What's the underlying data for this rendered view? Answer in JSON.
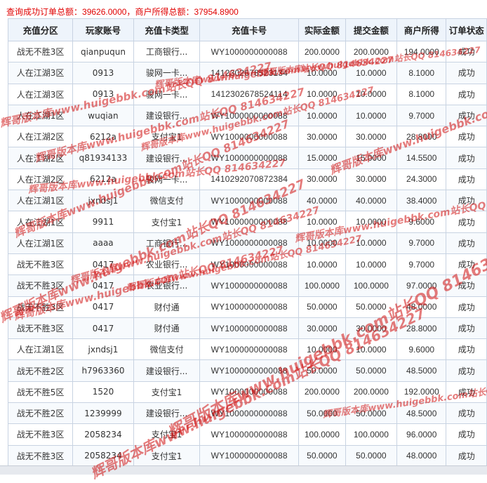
{
  "summary": {
    "label_total": "查询成功订单总额：",
    "total": "39626.0000",
    "separator": "，",
    "label_merchant": "商户所得总额：",
    "merchant_total": "37954.8900"
  },
  "table": {
    "headers": [
      "充值分区",
      "玩家账号",
      "充值卡类型",
      "充值卡号",
      "实际金额",
      "提交金额",
      "商户所得",
      "订单状态"
    ],
    "rows": [
      [
        "战无不胜3区",
        "qianpuqun",
        "工商银行...",
        "WY1000000000088",
        "200.0000",
        "200.0000",
        "194.0000",
        "成功"
      ],
      [
        "人在江湖3区",
        "0913",
        "骏网一卡...",
        "1412302678523134",
        "10.0000",
        "10.0000",
        "8.1000",
        "成功"
      ],
      [
        "人在江湖3区",
        "0913",
        "骏网一卡...",
        "1412302678524114",
        "10.0000",
        "10.0000",
        "8.1000",
        "成功"
      ],
      [
        "人在江湖1区",
        "wuqian",
        "建设银行...",
        "WY1000000000088",
        "10.0000",
        "10.0000",
        "9.7000",
        "成功"
      ],
      [
        "人在江湖2区",
        "6212a",
        "支付宝1",
        "WY1000000000088",
        "30.0000",
        "30.0000",
        "28.8000",
        "成功"
      ],
      [
        "人在江湖2区",
        "q81934133",
        "建设银行...",
        "WY1000000000088",
        "15.0000",
        "15.0000",
        "14.5500",
        "成功"
      ],
      [
        "人在江湖2区",
        "6212a",
        "骏网一卡...",
        "1410292070872384",
        "30.0000",
        "30.0000",
        "24.3000",
        "成功"
      ],
      [
        "人在江湖1区",
        "jxndsj1",
        "微信支付",
        "WY1000000000088",
        "40.0000",
        "40.0000",
        "38.4000",
        "成功"
      ],
      [
        "人在江湖1区",
        "9911",
        "支付宝1",
        "WY1000000000088",
        "10.0000",
        "10.0000",
        "9.6000",
        "成功"
      ],
      [
        "人在江湖1区",
        "aaaa",
        "工商银行...",
        "WY1000000000088",
        "10.0000",
        "10.0000",
        "9.7000",
        "成功"
      ],
      [
        "战无不胜3区",
        "0417",
        "农业银行...",
        "WY1000000000088",
        "10.0000",
        "10.0000",
        "9.7000",
        "成功"
      ],
      [
        "战无不胜3区",
        "0417",
        "农业银行...",
        "WY1000000000088",
        "100.0000",
        "100.0000",
        "97.0000",
        "成功"
      ],
      [
        "战无不胜3区",
        "0417",
        "财付通",
        "WY1000000000088",
        "50.0000",
        "50.0000",
        "48.0000",
        "成功"
      ],
      [
        "战无不胜3区",
        "0417",
        "财付通",
        "WY1000000000088",
        "30.0000",
        "30.0000",
        "28.8000",
        "成功"
      ],
      [
        "人在江湖1区",
        "jxndsj1",
        "微信支付",
        "WY1000000000088",
        "10.0000",
        "10.0000",
        "9.6000",
        "成功"
      ],
      [
        "战无不胜2区",
        "h7963360",
        "建设银行...",
        "WY1000000000088",
        "50.0000",
        "50.0000",
        "48.5000",
        "成功"
      ],
      [
        "战无不胜5区",
        "1520",
        "支付宝1",
        "WY1000000000088",
        "200.0000",
        "200.0000",
        "192.0000",
        "成功"
      ],
      [
        "战无不胜2区",
        "1239999",
        "建设银行...",
        "WY1000000000088",
        "50.0000",
        "50.0000",
        "48.5000",
        "成功"
      ],
      [
        "战无不胜3区",
        "2058234",
        "支付宝1",
        "WY1000000000088",
        "100.0000",
        "100.0000",
        "96.0000",
        "成功"
      ],
      [
        "战无不胜3区",
        "2058234",
        "支付宝1",
        "WY1000000000088",
        "50.0000",
        "50.0000",
        "48.0000",
        "成功"
      ]
    ]
  },
  "watermarks": [
    "辉哥版本库www.huigebbk.com站长QQ 814634227",
    "辉哥版本库www.huigebbk.com站长QQ 814634227",
    "辉哥版本库www.huigebbk.com站长QQ 814634227",
    "辉哥版本库www.huigebbk.com站长QQ 814634227",
    "辉哥版本库www.huigebbk.com站长QQ 814634227",
    "辉哥版本库www.huigebbk.com站长QQ 814634227",
    "辉哥版本库www.huigebbk.com站长QQ 814634227",
    "辉哥版本库www.huigebbk.com站长QQ 814634227",
    "辉哥版本库www.huigebbk.com站长QQ 814634227",
    "辉哥版本库www.huigebbk.com站长QQ 814634227",
    "辉哥版本库www.huigebbk.com站长QQ 814634227",
    "辉哥版本库www.huigebbk.com站长QQ 814634227",
    "辉哥版本库www.huigebbk.com站长QQ 814634227",
    "辉哥版本库www.huigebbk.com站长QQ 814634227",
    "辉哥版本库www.huigebbk.com站长QQ 814634227",
    "辉哥版本库www.huigebbk.com站长QQ 814634227"
  ],
  "colors": {
    "summary_text": "#e00000",
    "header_bg": "#eef4fb",
    "border": "#c8d3e2",
    "watermark": "#d01010"
  }
}
